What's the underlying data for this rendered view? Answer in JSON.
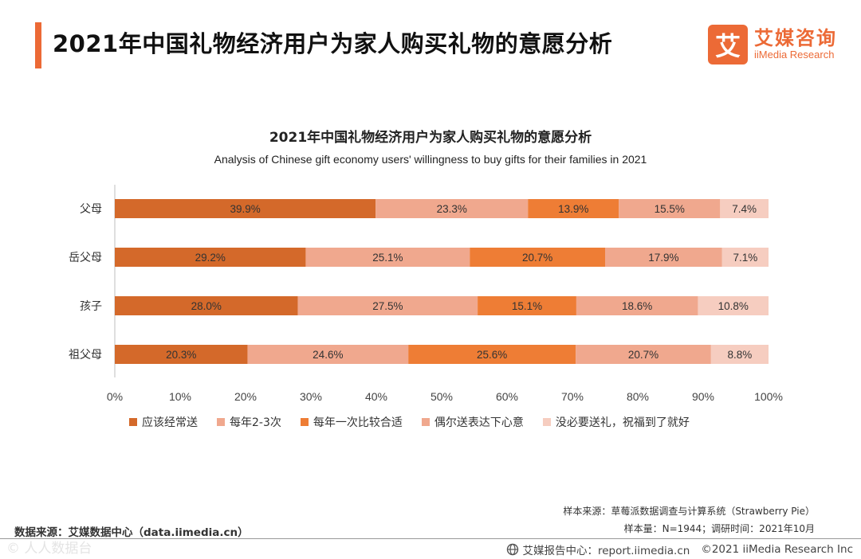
{
  "header": {
    "title": "2021年中国礼物经济用户为家人购买礼物的意愿分析",
    "logo_mark": "艾",
    "logo_cn": "艾媒咨询",
    "logo_en": "iiMedia Research"
  },
  "colors": {
    "accent": "#ec6a36",
    "series": [
      "#d4692a",
      "#f0a88e",
      "#ee7d35",
      "#f0a88e",
      "#f6cdc0"
    ]
  },
  "chart_data": {
    "type": "bar",
    "orientation": "horizontal",
    "stacked": true,
    "percent_stacked": true,
    "title": "2021年中国礼物经济用户为家人购买礼物的意愿分析",
    "subtitle": "Analysis of Chinese gift economy users' willingness to buy gifts for their families in 2021",
    "categories": [
      "父母",
      "岳父母",
      "孩子",
      "祖父母"
    ],
    "series": [
      {
        "name": "应该经常送",
        "values": [
          39.9,
          29.2,
          28.0,
          20.3
        ]
      },
      {
        "name": "每年2-3次",
        "values": [
          23.3,
          25.1,
          27.5,
          24.6
        ]
      },
      {
        "name": "每年一次比较合适",
        "values": [
          13.9,
          20.7,
          15.1,
          25.6
        ]
      },
      {
        "name": "偶尔送表达下心意",
        "values": [
          15.5,
          17.9,
          18.6,
          20.7
        ]
      },
      {
        "name": "没必要送礼，祝福到了就好",
        "values": [
          7.4,
          7.1,
          10.8,
          8.8
        ]
      }
    ],
    "x_ticks": [
      "0%",
      "10%",
      "20%",
      "30%",
      "40%",
      "50%",
      "60%",
      "70%",
      "80%",
      "90%",
      "100%"
    ],
    "xlim": [
      0,
      100
    ],
    "legend_position": "bottom"
  },
  "notes": {
    "sample_source": "样本来源：草莓派数据调查与计算系统（Strawberry Pie）",
    "sample_size": "样本量：N=1944；调研时间：2021年10月",
    "data_source": "数据来源：艾媒数据中心（data.iimedia.cn）"
  },
  "footer": {
    "watermark": "© 人人数据台",
    "report_center": "艾媒报告中心：report.iimedia.cn",
    "copyright": "©2021  iiMedia Research  Inc",
    "globe_icon": "globe-icon"
  }
}
